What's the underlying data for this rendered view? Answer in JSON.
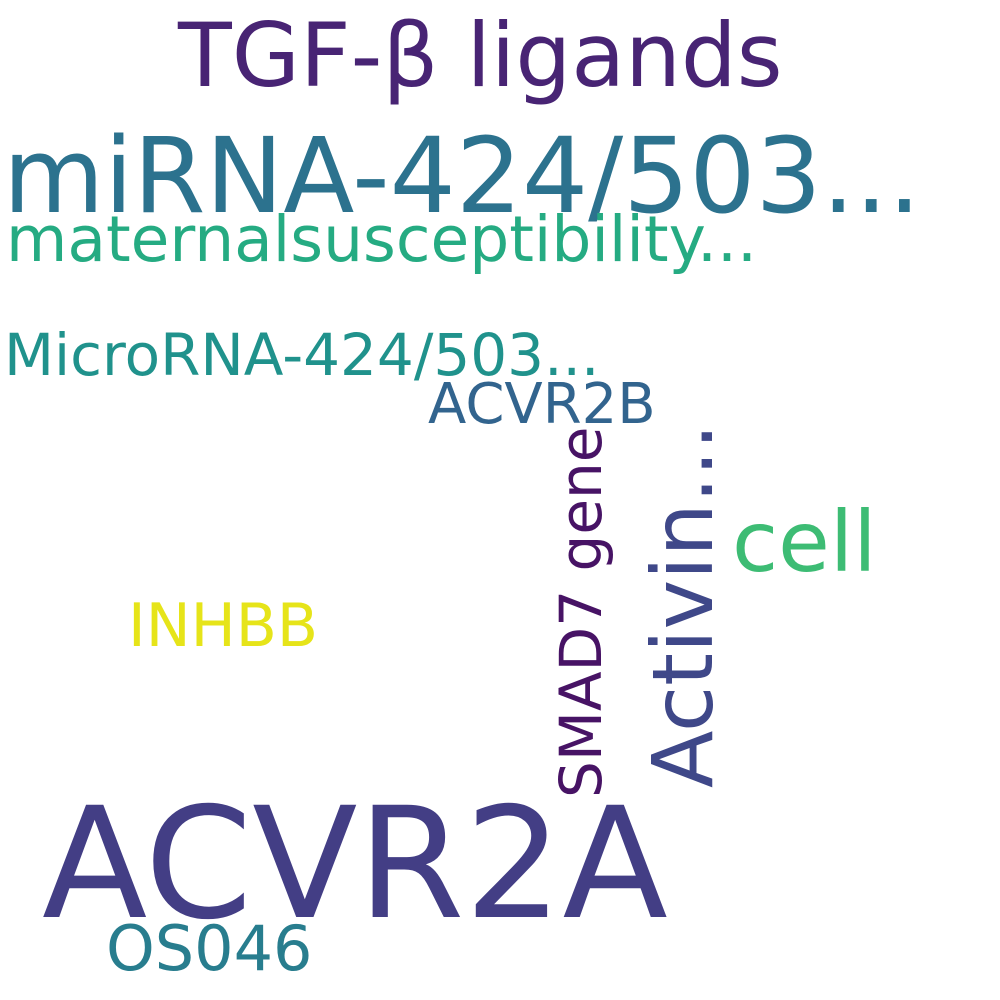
{
  "words": [
    {
      "text": "TGF-β ligands",
      "color": "#482474"
    },
    {
      "text": "miRNA-424/503...",
      "color": "#2c728e"
    },
    {
      "text": "maternalsusceptibility...",
      "color": "#25ab82"
    },
    {
      "text": "MicroRNA-424/503...",
      "color": "#20928c"
    },
    {
      "text": "ACVR2B",
      "color": "#32648e"
    },
    {
      "text": "Activin...",
      "color": "#3f4889"
    },
    {
      "text": "SMAD7 gene",
      "color": "#471365"
    },
    {
      "text": "cell",
      "color": "#3dbc74"
    },
    {
      "text": "INHBB",
      "color": "#e6e419"
    },
    {
      "text": "ACVR2A",
      "color": "#433e85"
    },
    {
      "text": "OS046",
      "color": "#287d8e"
    }
  ]
}
